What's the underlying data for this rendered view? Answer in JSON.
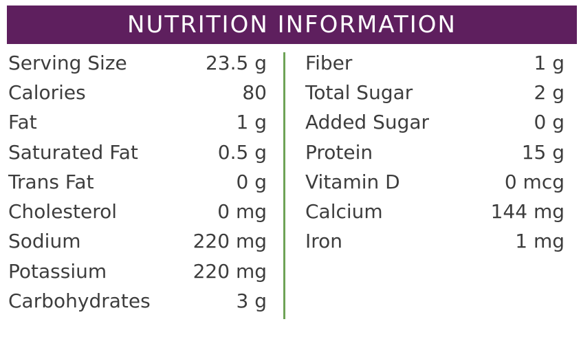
{
  "header": {
    "title": "NUTRITION INFORMATION"
  },
  "colors": {
    "header_bg": "#5e1f5e",
    "divider": "#6ea356",
    "text": "#3d3d3d"
  },
  "left_column": [
    {
      "label": "Serving Size",
      "value": "23.5 g"
    },
    {
      "label": "Calories",
      "value": "80"
    },
    {
      "label": "Fat",
      "value": "1 g"
    },
    {
      "label": "Saturated Fat",
      "value": "0.5 g"
    },
    {
      "label": "Trans Fat",
      "value": "0 g"
    },
    {
      "label": "Cholesterol",
      "value": "0 mg"
    },
    {
      "label": "Sodium",
      "value": "220 mg"
    },
    {
      "label": "Potassium",
      "value": "220 mg"
    },
    {
      "label": "Carbohydrates",
      "value": "3 g"
    }
  ],
  "right_column": [
    {
      "label": "Fiber",
      "value": "1 g"
    },
    {
      "label": "Total Sugar",
      "value": "2 g"
    },
    {
      "label": "Added Sugar",
      "value": "0 g"
    },
    {
      "label": "Protein",
      "value": "15 g"
    },
    {
      "label": "Vitamin D",
      "value": "0 mcg"
    },
    {
      "label": "Calcium",
      "value": "144 mg"
    },
    {
      "label": "Iron",
      "value": "1 mg"
    }
  ]
}
